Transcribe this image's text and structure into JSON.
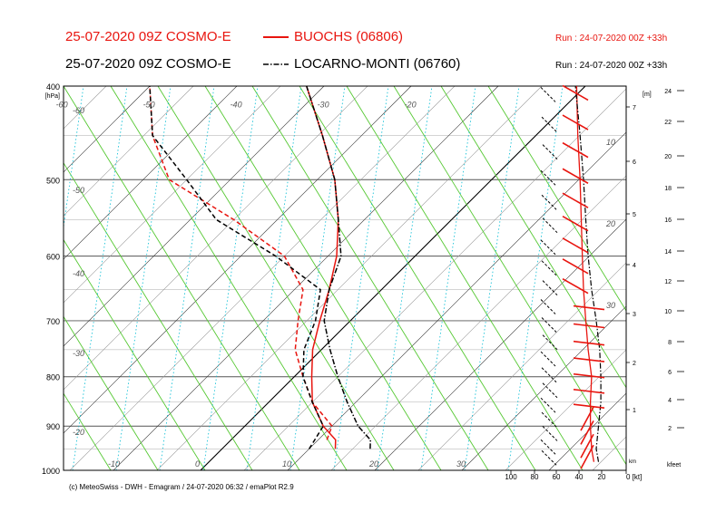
{
  "header": {
    "line1_left": "25-07-2020 09Z COSMO-E",
    "line1_station": "BUOCHS (06806)",
    "line1_run": "Run : 24-07-2020 00Z +33h",
    "line2_left": "25-07-2020 09Z COSMO-E",
    "line2_station": "LOCARNO-MONTI (06760)",
    "line2_run": "Run : 24-07-2020 00Z +33h"
  },
  "footer": "(c) MeteoSwiss - DWH - Emagram / 24-07-2020  06:32 / emaPlot R2.9",
  "colors": {
    "buochs": "#e8150f",
    "locarno": "#000000",
    "dry_adiabat": "#55c832",
    "isotherm": "#333333",
    "mixing_ratio": "#00bcd4"
  },
  "chart_data": {
    "type": "line",
    "pressure_unit_label": "[hPa]",
    "pressure_range": [
      1000,
      400
    ],
    "pressure_ticks": [
      "400",
      "500",
      "600",
      "700",
      "800",
      "900",
      "1000"
    ],
    "isotherm_labels": [
      "-60",
      "-50",
      "-40",
      "-30",
      "-20",
      "-60",
      "-50",
      "-40",
      "-30",
      "-20",
      "-10",
      "0",
      "10",
      "20",
      "30"
    ],
    "height_m_unit": "[m]",
    "height_m_labels": [
      "7",
      "6",
      "5",
      "4",
      "3",
      "2",
      "1"
    ],
    "height_km_unit": "km",
    "height_kfeet_labels": [
      "24",
      "22",
      "20",
      "18",
      "16",
      "14",
      "12",
      "10",
      "8",
      "6",
      "4",
      "2"
    ],
    "height_kfeet_unit": "kfeet",
    "wind_axis_labels": [
      "100",
      "80",
      "60",
      "40",
      "20",
      "0 [kt]"
    ],
    "wind_scale_labels": [
      "10",
      "20",
      "30"
    ],
    "series": [
      {
        "name": "BUOCHS (06806)",
        "style": "temperature",
        "color": "#e8150f",
        "points": [
          [
            13,
            950
          ],
          [
            12,
            930
          ],
          [
            9,
            900
          ],
          [
            5,
            850
          ],
          [
            2,
            800
          ],
          [
            -1,
            750
          ],
          [
            -3.5,
            700
          ],
          [
            -6,
            650
          ],
          [
            -9,
            600
          ],
          [
            -13,
            550
          ],
          [
            -18,
            500
          ],
          [
            -24.5,
            450
          ],
          [
            -32,
            400
          ]
        ]
      },
      {
        "name": "BUOCHS (06806)",
        "style": "dewpoint",
        "color": "#e8150f",
        "points": [
          [
            11,
            930
          ],
          [
            10,
            900
          ],
          [
            5,
            850
          ],
          [
            1,
            800
          ],
          [
            -3,
            750
          ],
          [
            -6,
            700
          ],
          [
            -9,
            650
          ],
          [
            -15,
            600
          ],
          [
            -25,
            550
          ],
          [
            -37,
            500
          ],
          [
            -44,
            450
          ],
          [
            -50,
            400
          ]
        ]
      },
      {
        "name": "LOCARNO-MONTI (06760)",
        "style": "temperature",
        "color": "#000000",
        "points": [
          [
            17,
            950
          ],
          [
            16,
            930
          ],
          [
            13,
            900
          ],
          [
            9,
            850
          ],
          [
            5,
            800
          ],
          [
            1,
            750
          ],
          [
            -3,
            700
          ],
          [
            -6,
            650
          ],
          [
            -8.5,
            600
          ],
          [
            -13,
            550
          ],
          [
            -18,
            500
          ],
          [
            -24.5,
            450
          ],
          [
            -32,
            400
          ]
        ]
      },
      {
        "name": "LOCARNO-MONTI (06760)",
        "style": "dewpoint",
        "color": "#000000",
        "points": [
          [
            10,
            950
          ],
          [
            9,
            900
          ],
          [
            5,
            850
          ],
          [
            1,
            800
          ],
          [
            -2,
            750
          ],
          [
            -4,
            700
          ],
          [
            -7,
            650
          ],
          [
            -16,
            600
          ],
          [
            -27,
            550
          ],
          [
            -35,
            500
          ],
          [
            -44,
            450
          ],
          [
            -50,
            400
          ]
        ]
      }
    ],
    "red_wind_profile_kt": [
      [
        980,
        28
      ],
      [
        950,
        30
      ],
      [
        900,
        31
      ],
      [
        850,
        31
      ],
      [
        800,
        30
      ],
      [
        750,
        33
      ],
      [
        700,
        35
      ],
      [
        650,
        37
      ],
      [
        600,
        38
      ],
      [
        550,
        39
      ],
      [
        500,
        40
      ],
      [
        450,
        42
      ],
      [
        400,
        43
      ]
    ],
    "black_wind_profile_kt": [
      [
        980,
        24
      ],
      [
        950,
        26
      ],
      [
        900,
        24
      ],
      [
        850,
        22
      ],
      [
        800,
        22
      ],
      [
        750,
        23
      ],
      [
        700,
        26
      ],
      [
        650,
        30
      ],
      [
        600,
        33
      ],
      [
        550,
        35
      ],
      [
        500,
        37
      ],
      [
        450,
        40
      ],
      [
        400,
        44
      ]
    ]
  }
}
